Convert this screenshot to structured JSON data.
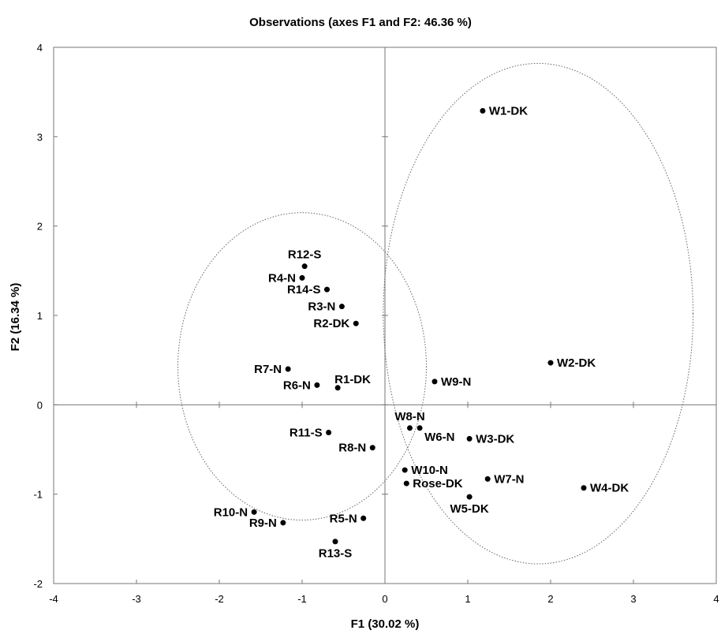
{
  "chart_data": {
    "type": "scatter",
    "title": "Observations (axes F1 and F2: 46.36 %)",
    "xlabel": "F1 (30.02 %)",
    "ylabel": "F2 (16.34 %)",
    "xlim": [
      -4,
      4
    ],
    "ylim": [
      -2,
      4
    ],
    "xticks": [
      "-4",
      "-3",
      "-2",
      "-1",
      "0",
      "1",
      "2",
      "3",
      "4"
    ],
    "yticks": [
      "-2",
      "-1",
      "0",
      "1",
      "2",
      "3",
      "4"
    ],
    "grid": false,
    "legend": "none",
    "marker_color": "#000000",
    "points": [
      {
        "label": "W1-DK",
        "x": 1.18,
        "y": 3.29,
        "label_pos": "right"
      },
      {
        "label": "W2-DK",
        "x": 2.0,
        "y": 0.47,
        "label_pos": "right"
      },
      {
        "label": "W3-DK",
        "x": 1.02,
        "y": -0.38,
        "label_pos": "right"
      },
      {
        "label": "W4-DK",
        "x": 2.4,
        "y": -0.93,
        "label_pos": "right"
      },
      {
        "label": "W5-DK",
        "x": 1.02,
        "y": -1.03,
        "label_pos": "below"
      },
      {
        "label": "W6-N",
        "x": 0.42,
        "y": -0.26,
        "label_pos": "below-right"
      },
      {
        "label": "W7-N",
        "x": 1.24,
        "y": -0.83,
        "label_pos": "right"
      },
      {
        "label": "W8-N",
        "x": 0.3,
        "y": -0.26,
        "label_pos": "above"
      },
      {
        "label": "W9-N",
        "x": 0.6,
        "y": 0.26,
        "label_pos": "right"
      },
      {
        "label": "W10-N",
        "x": 0.24,
        "y": -0.73,
        "label_pos": "right"
      },
      {
        "label": "Rose-DK",
        "x": 0.26,
        "y": -0.88,
        "label_pos": "right"
      },
      {
        "label": "R1-DK",
        "x": -0.57,
        "y": 0.19,
        "label_pos": "above-right"
      },
      {
        "label": "R2-DK",
        "x": -0.35,
        "y": 0.91,
        "label_pos": "left"
      },
      {
        "label": "R3-N",
        "x": -0.52,
        "y": 1.1,
        "label_pos": "left"
      },
      {
        "label": "R4-N",
        "x": -1.0,
        "y": 1.42,
        "label_pos": "left"
      },
      {
        "label": "R5-N",
        "x": -0.26,
        "y": -1.27,
        "label_pos": "left"
      },
      {
        "label": "R6-N",
        "x": -0.82,
        "y": 0.22,
        "label_pos": "left"
      },
      {
        "label": "R7-N",
        "x": -1.17,
        "y": 0.4,
        "label_pos": "left"
      },
      {
        "label": "R8-N",
        "x": -0.15,
        "y": -0.48,
        "label_pos": "left"
      },
      {
        "label": "R9-N",
        "x": -1.23,
        "y": -1.32,
        "label_pos": "left"
      },
      {
        "label": "R10-N",
        "x": -1.58,
        "y": -1.2,
        "label_pos": "left"
      },
      {
        "label": "R11-S",
        "x": -0.68,
        "y": -0.31,
        "label_pos": "left"
      },
      {
        "label": "R12-S",
        "x": -0.97,
        "y": 1.55,
        "label_pos": "above"
      },
      {
        "label": "R13-S",
        "x": -0.6,
        "y": -1.53,
        "label_pos": "below"
      },
      {
        "label": "R14-S",
        "x": -0.7,
        "y": 1.29,
        "label_pos": "left"
      }
    ],
    "ellipses": [
      {
        "name": "red-wine-cluster",
        "cx": -1.0,
        "cy": 0.43,
        "rx": 1.5,
        "ry": 1.72
      },
      {
        "name": "white-wine-cluster",
        "cx": 1.85,
        "cy": 1.02,
        "rx": 1.87,
        "ry": 2.8
      }
    ]
  }
}
